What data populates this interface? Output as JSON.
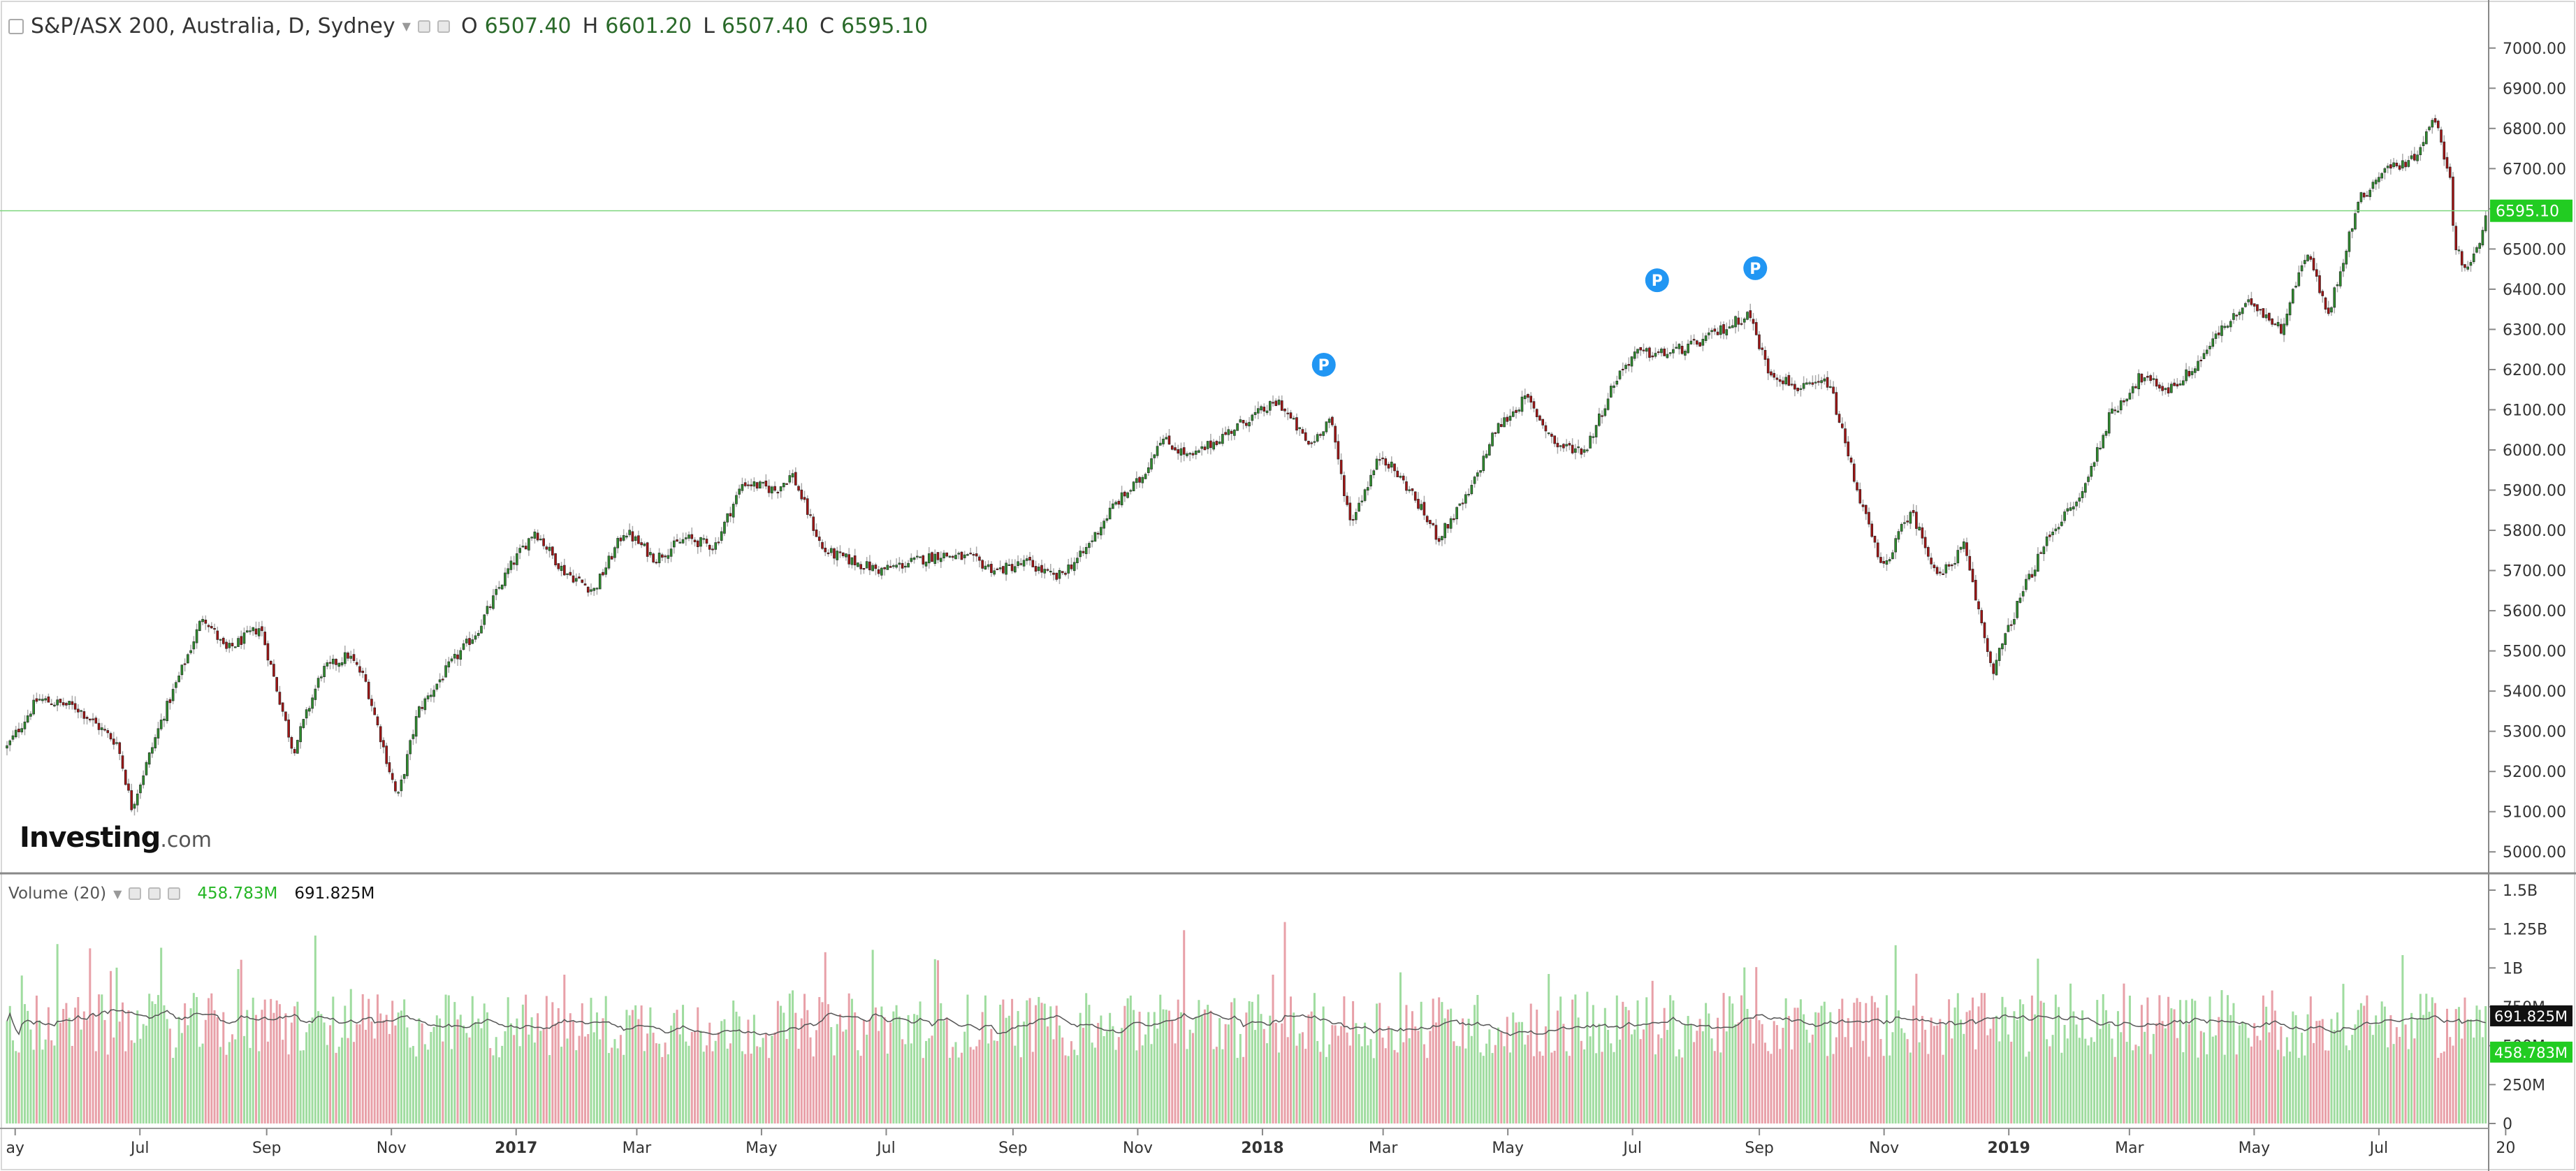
{
  "chart_title": "S&P/ASX 200, Australia, D, Sydney",
  "ohlc": {
    "o_label": "O",
    "o": "6507.40",
    "h_label": "H",
    "h": "6601.20",
    "l_label": "L",
    "l": "6507.40",
    "c_label": "C",
    "c": "6595.10"
  },
  "volume_legend": {
    "label": "Volume (20)",
    "value_a": "458.783M",
    "value_b": "691.825M"
  },
  "brand": {
    "name": "Investing",
    "suffix": ".com"
  },
  "colors": {
    "up": "#2e8b2e",
    "down": "#a01515",
    "vol_up": "#9fdc9f",
    "vol_down": "#e8a0a8",
    "last_price": "#22cc22",
    "marker": "#2196f3"
  },
  "chart_data": {
    "type": "candlestick",
    "title": "S&P/ASX 200, Australia, D, Sydney",
    "interval": "D",
    "price_axis": {
      "ylim": [
        4950,
        7050
      ],
      "ticks": [
        5000,
        5100,
        5200,
        5300,
        5400,
        5500,
        5600,
        5700,
        5800,
        5900,
        6000,
        6100,
        6200,
        6300,
        6400,
        6500,
        6600,
        6700,
        6800,
        6900,
        7000
      ],
      "tick_labels": [
        "5000.00",
        "5100.00",
        "5200.00",
        "5300.00",
        "5400.00",
        "5500.00",
        "5600.00",
        "5700.00",
        "5800.00",
        "5900.00",
        "6000.00",
        "6100.00",
        "6200.00",
        "6300.00",
        "6400.00",
        "6500.00",
        "6600.00",
        "6700.00",
        "6800.00",
        "6900.00",
        "7000.00"
      ]
    },
    "last_price": {
      "value": 6595.1,
      "label": "6595.10"
    },
    "volume_axis": {
      "ylim": [
        0,
        1500000000
      ],
      "ticks": [
        0,
        250000000,
        500000000,
        750000000,
        1000000000,
        1250000000,
        1500000000
      ],
      "tick_labels": [
        "0",
        "250M",
        "500M",
        "750M",
        "1B",
        "1.25B",
        "1.5B"
      ]
    },
    "volume_ma": {
      "period": 20,
      "value": 691825000,
      "label": "691.825M"
    },
    "volume_last": {
      "value": 458783000,
      "label": "458.783M"
    },
    "x_axis_labels": [
      {
        "label": "ay",
        "date": "2016-05-01"
      },
      {
        "label": "Jul",
        "date": "2016-07-01"
      },
      {
        "label": "Sep",
        "date": "2016-09-01"
      },
      {
        "label": "Nov",
        "date": "2016-11-01"
      },
      {
        "label": "2017",
        "date": "2017-01-01",
        "bold": true
      },
      {
        "label": "Mar",
        "date": "2017-03-01"
      },
      {
        "label": "May",
        "date": "2017-05-01"
      },
      {
        "label": "Jul",
        "date": "2017-07-01"
      },
      {
        "label": "Sep",
        "date": "2017-09-01"
      },
      {
        "label": "Nov",
        "date": "2017-11-01"
      },
      {
        "label": "2018",
        "date": "2018-01-01",
        "bold": true
      },
      {
        "label": "Mar",
        "date": "2018-03-01"
      },
      {
        "label": "May",
        "date": "2018-05-01"
      },
      {
        "label": "Jul",
        "date": "2018-07-01"
      },
      {
        "label": "Sep",
        "date": "2018-09-01"
      },
      {
        "label": "Nov",
        "date": "2018-11-01"
      },
      {
        "label": "2019",
        "date": "2019-01-01",
        "bold": true
      },
      {
        "label": "Mar",
        "date": "2019-03-01"
      },
      {
        "label": "May",
        "date": "2019-05-01"
      },
      {
        "label": "Jul",
        "date": "2019-07-01"
      },
      {
        "label": "20",
        "date": "2019-09-01"
      }
    ],
    "date_range": [
      "2016-04-27",
      "2019-08-23"
    ],
    "close_path": [
      [
        "2016-04-27",
        5260
      ],
      [
        "2016-05-12",
        5380
      ],
      [
        "2016-05-31",
        5360
      ],
      [
        "2016-06-20",
        5270
      ],
      [
        "2016-06-27",
        5110
      ],
      [
        "2016-07-11",
        5320
      ],
      [
        "2016-07-26",
        5510
      ],
      [
        "2016-08-01",
        5590
      ],
      [
        "2016-08-12",
        5500
      ],
      [
        "2016-08-29",
        5560
      ],
      [
        "2016-09-14",
        5250
      ],
      [
        "2016-09-28",
        5450
      ],
      [
        "2016-10-11",
        5490
      ],
      [
        "2016-10-19",
        5430
      ],
      [
        "2016-11-04",
        5130
      ],
      [
        "2016-11-14",
        5350
      ],
      [
        "2016-11-29",
        5460
      ],
      [
        "2016-12-13",
        5550
      ],
      [
        "2016-12-28",
        5700
      ],
      [
        "2017-01-10",
        5800
      ],
      [
        "2017-01-24",
        5700
      ],
      [
        "2017-02-08",
        5650
      ],
      [
        "2017-02-23",
        5800
      ],
      [
        "2017-03-10",
        5730
      ],
      [
        "2017-03-25",
        5780
      ],
      [
        "2017-04-08",
        5760
      ],
      [
        "2017-04-22",
        5920
      ],
      [
        "2017-05-08",
        5900
      ],
      [
        "2017-05-16",
        5940
      ],
      [
        "2017-05-31",
        5750
      ],
      [
        "2017-06-16",
        5720
      ],
      [
        "2017-06-28",
        5700
      ],
      [
        "2017-07-13",
        5720
      ],
      [
        "2017-07-27",
        5740
      ],
      [
        "2017-08-11",
        5730
      ],
      [
        "2017-08-24",
        5700
      ],
      [
        "2017-09-08",
        5720
      ],
      [
        "2017-09-22",
        5680
      ],
      [
        "2017-10-05",
        5740
      ],
      [
        "2017-10-20",
        5860
      ],
      [
        "2017-11-03",
        5930
      ],
      [
        "2017-11-12",
        6030
      ],
      [
        "2017-11-27",
        5980
      ],
      [
        "2017-12-11",
        6030
      ],
      [
        "2017-12-26",
        6080
      ],
      [
        "2018-01-09",
        6120
      ],
      [
        "2018-01-24",
        6010
      ],
      [
        "2018-02-03",
        6080
      ],
      [
        "2018-02-13",
        5820
      ],
      [
        "2018-02-28",
        5990
      ],
      [
        "2018-03-14",
        5900
      ],
      [
        "2018-03-28",
        5780
      ],
      [
        "2018-04-12",
        5890
      ],
      [
        "2018-04-25",
        6050
      ],
      [
        "2018-05-10",
        6130
      ],
      [
        "2018-05-25",
        6010
      ],
      [
        "2018-06-08",
        6000
      ],
      [
        "2018-06-23",
        6180
      ],
      [
        "2018-07-02",
        6240
      ],
      [
        "2018-07-17",
        6240
      ],
      [
        "2018-07-31",
        6260
      ],
      [
        "2018-08-14",
        6300
      ],
      [
        "2018-08-27",
        6340
      ],
      [
        "2018-09-05",
        6200
      ],
      [
        "2018-09-21",
        6150
      ],
      [
        "2018-10-05",
        6170
      ],
      [
        "2018-10-19",
        5900
      ],
      [
        "2018-10-31",
        5700
      ],
      [
        "2018-11-14",
        5850
      ],
      [
        "2018-11-28",
        5680
      ],
      [
        "2018-12-10",
        5760
      ],
      [
        "2018-12-24",
        5450
      ],
      [
        "2019-01-08",
        5650
      ],
      [
        "2019-01-22",
        5800
      ],
      [
        "2019-02-05",
        5880
      ],
      [
        "2019-02-19",
        6080
      ],
      [
        "2019-03-06",
        6180
      ],
      [
        "2019-03-20",
        6150
      ],
      [
        "2019-04-01",
        6200
      ],
      [
        "2019-04-15",
        6300
      ],
      [
        "2019-04-30",
        6370
      ],
      [
        "2019-05-14",
        6300
      ],
      [
        "2019-05-27",
        6500
      ],
      [
        "2019-06-06",
        6330
      ],
      [
        "2019-06-21",
        6620
      ],
      [
        "2019-07-04",
        6700
      ],
      [
        "2019-07-17",
        6720
      ],
      [
        "2019-07-29",
        6830
      ],
      [
        "2019-08-05",
        6660
      ],
      [
        "2019-08-07",
        6520
      ],
      [
        "2019-08-12",
        6450
      ],
      [
        "2019-08-19",
        6500
      ],
      [
        "2019-08-23",
        6595
      ]
    ],
    "markers": [
      {
        "label": "P",
        "date": "2018-01-31",
        "price": 6160
      },
      {
        "label": "P",
        "date": "2018-07-13",
        "price": 6370
      },
      {
        "label": "P",
        "date": "2018-08-30",
        "price": 6400
      }
    ]
  }
}
